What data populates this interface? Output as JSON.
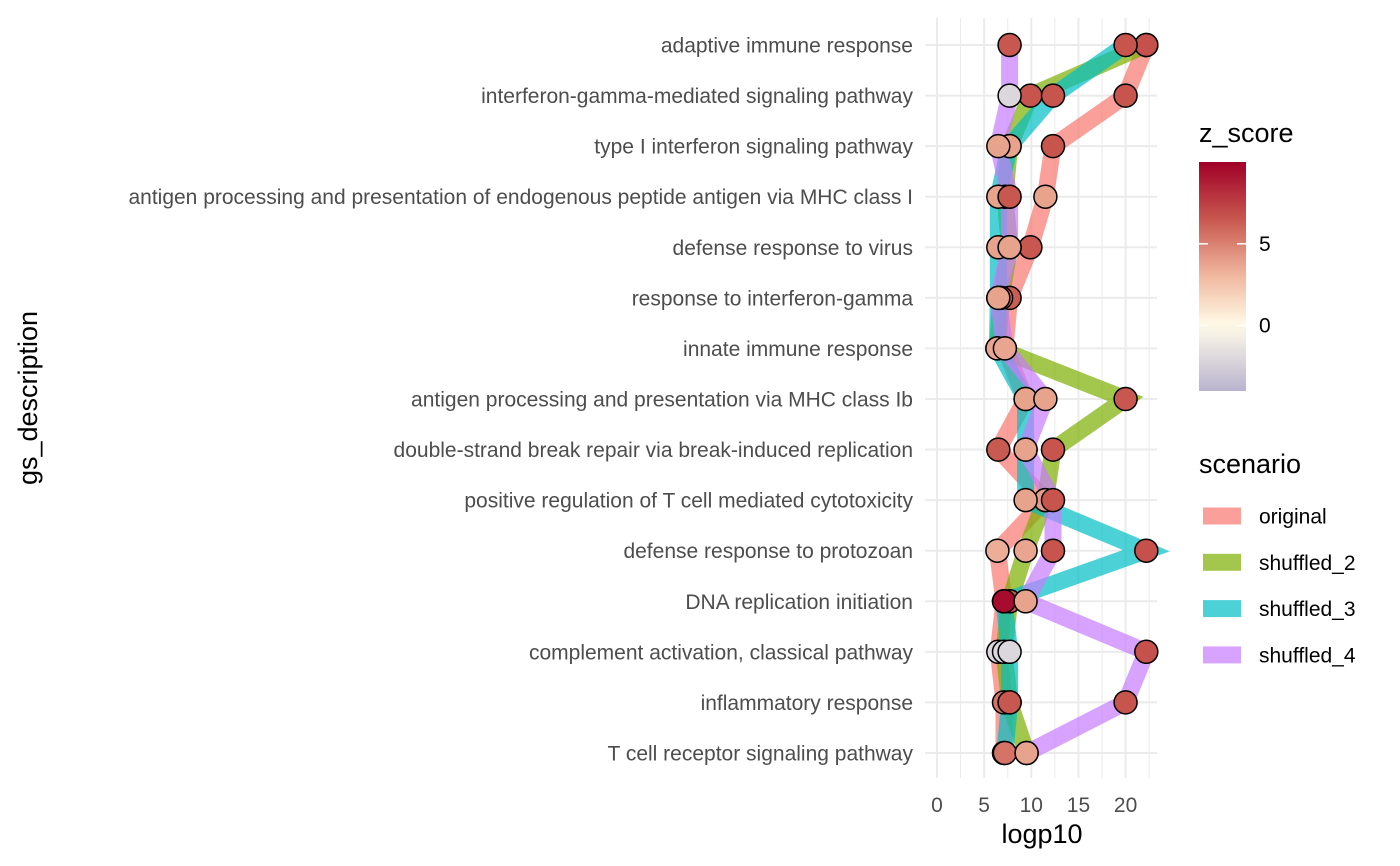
{
  "chart_data": {
    "type": "scatter",
    "xlabel": "logp10",
    "ylabel": "gs_description",
    "xlim": [
      -1,
      23.5
    ],
    "x_ticks": [
      "0",
      "5",
      "10",
      "15",
      "20"
    ],
    "grid": true,
    "legend_position": "right",
    "categories": [
      "adaptive immune response",
      "interferon-gamma-mediated signaling pathway",
      "type I interferon signaling pathway",
      "antigen processing and presentation of endogenous peptide antigen via MHC class I",
      "defense response to virus",
      "response to interferon-gamma",
      "innate immune response",
      "antigen processing and presentation via MHC class Ib",
      "double-strand break repair via break-induced replication",
      "positive regulation of T cell mediated cytotoxicity",
      "defense response to protozoan",
      "DNA replication initiation",
      "complement activation, classical pathway",
      "inflammatory response",
      "T cell receptor signaling pathway"
    ],
    "color_legend": {
      "title": "z_score",
      "ticks": [
        "5",
        "0"
      ],
      "range": [
        -4,
        10
      ],
      "colors": [
        "#b9b3cf",
        "#fffbe8",
        "#f1b9a0",
        "#c8574f",
        "#a00027"
      ]
    },
    "series_legend_title": "scenario",
    "series": [
      {
        "name": "original",
        "color": "#f8766d",
        "x": [
          22.2,
          20.0,
          12.3,
          11.5,
          9.9,
          7.7,
          7.2,
          9.4,
          6.5,
          11.5,
          6.4,
          7.1,
          6.5,
          7.1,
          7.1
        ],
        "z": [
          6.8,
          6.6,
          6.6,
          3.8,
          6.5,
          6.3,
          5.0,
          3.8,
          6.4,
          4.0,
          3.4,
          9.5,
          -2.0,
          5.5,
          5.5
        ]
      },
      {
        "name": "shuffled_2",
        "color": "#7cae00",
        "x": [
          22.2,
          9.9,
          7.7,
          7.2,
          7.7,
          6.8,
          6.4,
          20.0,
          12.3,
          11.5,
          9.4,
          7.7,
          7.1,
          7.7,
          9.5
        ],
        "z": [
          6.8,
          6.6,
          6.5,
          6.5,
          3.8,
          5.5,
          3.7,
          6.5,
          6.6,
          4.0,
          3.7,
          6.5,
          -2.0,
          6.5,
          3.8
        ]
      },
      {
        "name": "shuffled_3",
        "color": "#00bfc4",
        "x": [
          20.0,
          12.3,
          7.7,
          6.5,
          6.5,
          6.5,
          6.4,
          9.4,
          9.4,
          9.4,
          22.2,
          7.1,
          7.7,
          7.7,
          7.2
        ],
        "z": [
          6.6,
          6.6,
          3.8,
          3.8,
          3.8,
          5.5,
          3.7,
          3.8,
          3.8,
          3.8,
          6.8,
          9.5,
          -2.0,
          6.5,
          5.5
        ]
      },
      {
        "name": "shuffled_4",
        "color": "#c77cff",
        "x": [
          7.7,
          7.7,
          6.5,
          7.7,
          7.7,
          6.5,
          7.2,
          11.5,
          9.4,
          12.3,
          12.3,
          9.4,
          22.2,
          20.0,
          9.5
        ],
        "z": [
          6.5,
          -2.0,
          3.8,
          6.5,
          3.8,
          3.8,
          3.7,
          3.8,
          3.8,
          6.6,
          6.6,
          3.8,
          6.8,
          6.6,
          3.8
        ]
      }
    ]
  }
}
